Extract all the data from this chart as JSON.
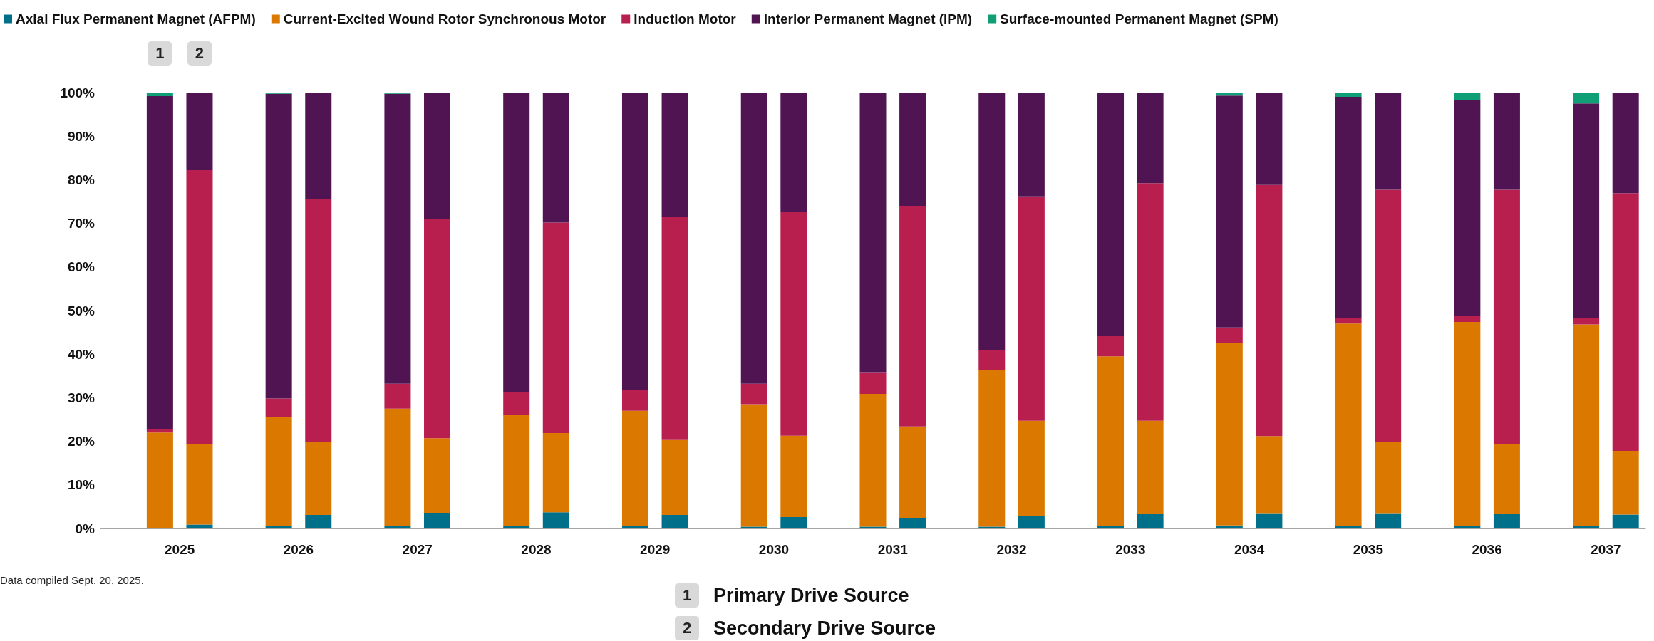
{
  "chart_data": {
    "type": "bar",
    "stacked": true,
    "categories": [
      null,
      "2025",
      null,
      null,
      "2026",
      null,
      null,
      "2027",
      null,
      null,
      "2028",
      null,
      null,
      "2029",
      null,
      null,
      "2030",
      null,
      null,
      "2031",
      null,
      null,
      "2032",
      null,
      null,
      "2033",
      null,
      null,
      "2034",
      null,
      null,
      "2035",
      null,
      null,
      "2036",
      null,
      null,
      "2037",
      null
    ],
    "series": [
      {
        "name": "Axial Flux Permanent Magnet (AFPM)",
        "color": "#006f8a",
        "values": [
          null,
          null,
          0.9,
          null,
          0.5,
          3.1,
          null,
          0.5,
          3.6,
          null,
          0.5,
          3.7,
          null,
          0.5,
          3.1,
          null,
          0.4,
          2.6,
          null,
          0.4,
          2.4,
          null,
          0.4,
          2.9,
          null,
          0.5,
          3.3,
          null,
          0.7,
          3.5,
          null,
          0.5,
          3.5,
          null,
          0.5,
          3.4,
          null,
          0.5,
          3.2
        ]
      },
      {
        "name": "Current-Excited Wound Rotor Synchronous Motor",
        "color": "#db7800",
        "values": [
          null,
          22.0,
          18.4,
          null,
          25.1,
          16.7,
          null,
          27.0,
          17.1,
          null,
          25.5,
          18.2,
          null,
          26.5,
          17.2,
          null,
          28.1,
          18.7,
          null,
          30.5,
          21.0,
          null,
          35.9,
          21.8,
          null,
          39.0,
          21.4,
          null,
          41.9,
          17.7,
          null,
          46.5,
          16.3,
          null,
          46.9,
          15.9,
          null,
          46.3,
          14.6
        ]
      },
      {
        "name": "Induction Motor",
        "color": "#b81f4f",
        "values": [
          null,
          0.8,
          62.9,
          null,
          4.2,
          55.7,
          null,
          5.7,
          50.2,
          null,
          5.3,
          48.3,
          null,
          4.8,
          51.2,
          null,
          4.7,
          51.3,
          null,
          4.8,
          50.6,
          null,
          4.6,
          51.5,
          null,
          4.6,
          54.5,
          null,
          3.5,
          57.6,
          null,
          1.3,
          57.9,
          null,
          1.3,
          58.4,
          null,
          1.5,
          59.1
        ]
      },
      {
        "name": "Interior Permanent Magnet (IPM)",
        "color": "#501453",
        "values": [
          null,
          76.4,
          17.8,
          null,
          69.9,
          24.5,
          null,
          66.5,
          29.1,
          null,
          68.6,
          29.8,
          null,
          68.1,
          28.5,
          null,
          66.7,
          27.4,
          null,
          64.3,
          26.0,
          null,
          59.1,
          23.8,
          null,
          55.9,
          20.8,
          null,
          53.2,
          21.2,
          null,
          50.7,
          22.3,
          null,
          49.6,
          22.3,
          null,
          49.2,
          23.1
        ]
      },
      {
        "name": "Surface-mounted Permanent Magnet (SPM)",
        "color": "#0f9e76",
        "values": [
          null,
          0.8,
          null,
          null,
          0.3,
          null,
          null,
          0.3,
          null,
          null,
          0.1,
          null,
          null,
          0.1,
          null,
          null,
          0.1,
          null,
          null,
          null,
          null,
          null,
          null,
          null,
          null,
          null,
          null,
          null,
          0.7,
          null,
          null,
          1.0,
          null,
          null,
          1.7,
          null,
          null,
          2.5,
          null
        ]
      }
    ],
    "ylim": [
      0,
      100
    ],
    "yticks": [
      {
        "value": 0,
        "label": "0%"
      },
      {
        "value": 10,
        "label": "10%"
      },
      {
        "value": 20,
        "label": "20%"
      },
      {
        "value": 30,
        "label": "30%"
      },
      {
        "value": 40,
        "label": "40%"
      },
      {
        "value": 50,
        "label": "50%"
      },
      {
        "value": 60,
        "label": "60%"
      },
      {
        "value": 70,
        "label": "70%"
      },
      {
        "value": 80,
        "label": "80%"
      },
      {
        "value": 90,
        "label": "90%"
      },
      {
        "value": 100,
        "label": "100%"
      }
    ],
    "grid": false,
    "legend": "top left",
    "annotations": [
      "1",
      "2",
      "Data compiled Sept. 20, 2025.",
      "Primary Drive Source",
      "Secondary Drive Source"
    ]
  }
}
